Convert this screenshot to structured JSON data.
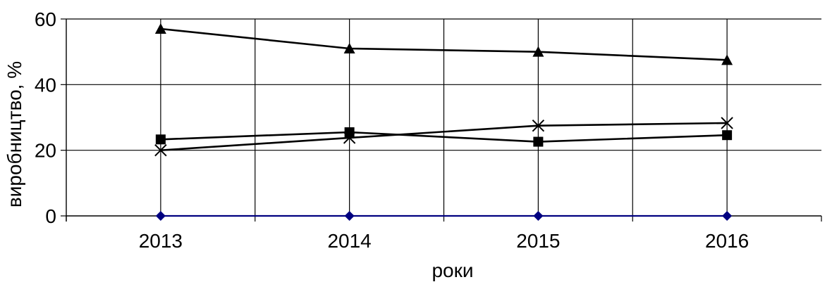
{
  "chart_data": {
    "type": "line",
    "title": "",
    "xlabel": "роки",
    "ylabel": "виробництво, %",
    "categories": [
      "2013",
      "2014",
      "2015",
      "2016"
    ],
    "ylim": [
      0,
      60
    ],
    "yticks": [
      0,
      20,
      40,
      60
    ],
    "grid": true,
    "legend": "none",
    "series": [
      {
        "marker": "diamond",
        "color": "#000080",
        "values": [
          0,
          0,
          0,
          0
        ]
      },
      {
        "marker": "square",
        "color": "#000000",
        "values": [
          23.3,
          25.5,
          22.6,
          24.6
        ]
      },
      {
        "marker": "triangle",
        "color": "#000000",
        "values": [
          57,
          51,
          50,
          47.5
        ]
      },
      {
        "marker": "x",
        "color": "#000000",
        "values": [
          20,
          23.8,
          27.5,
          28.3
        ]
      }
    ]
  }
}
